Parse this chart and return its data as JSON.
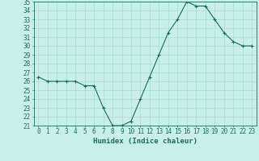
{
  "x": [
    0,
    1,
    2,
    3,
    4,
    5,
    6,
    7,
    8,
    9,
    10,
    11,
    12,
    13,
    14,
    15,
    16,
    17,
    18,
    19,
    20,
    21,
    22,
    23
  ],
  "y": [
    26.5,
    26.0,
    26.0,
    26.0,
    26.0,
    25.5,
    25.5,
    23.0,
    21.0,
    21.0,
    21.5,
    24.0,
    26.5,
    29.0,
    31.5,
    33.0,
    35.0,
    34.5,
    34.5,
    33.0,
    31.5,
    30.5,
    30.0,
    30.0
  ],
  "line_color": "#1a6b5a",
  "marker": "+",
  "background_color": "#c8f0e8",
  "grid_color": "#a0d8cc",
  "xlabel": "Humidex (Indice chaleur)",
  "ylim": [
    21,
    35
  ],
  "xlim_min": -0.5,
  "xlim_max": 23.5,
  "yticks": [
    21,
    22,
    23,
    24,
    25,
    26,
    27,
    28,
    29,
    30,
    31,
    32,
    33,
    34,
    35
  ],
  "xticks": [
    0,
    1,
    2,
    3,
    4,
    5,
    6,
    7,
    8,
    9,
    10,
    11,
    12,
    13,
    14,
    15,
    16,
    17,
    18,
    19,
    20,
    21,
    22,
    23
  ],
  "tick_fontsize": 5.5,
  "label_fontsize": 6.5,
  "line_width": 0.8,
  "marker_size": 3.0,
  "marker_edge_width": 0.8
}
